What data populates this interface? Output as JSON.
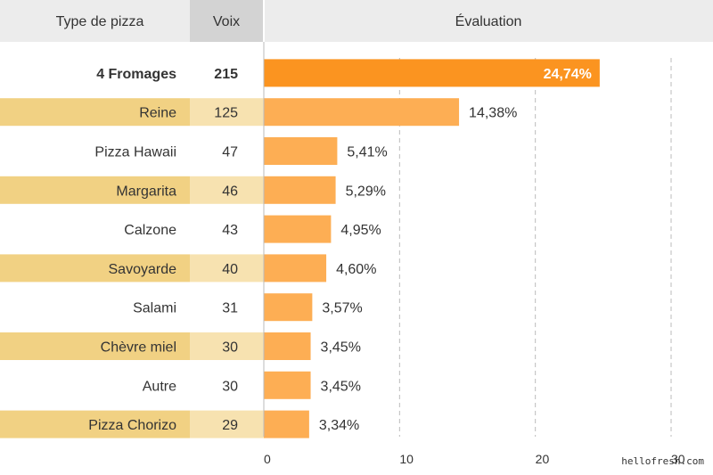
{
  "header": {
    "col_type": "Type de pizza",
    "col_votes": "Voix",
    "col_eval": "Évaluation"
  },
  "watermark": "hellofresh.com",
  "colors": {
    "header_bg": "#ececec",
    "votes_header_bg": "#d3d3d3",
    "stripe_label": "#f1d183",
    "stripe_votes": "#f7e2b0",
    "bar_top": "#fb9420",
    "bar": "#fdae54",
    "grid": "#bbbbbb"
  },
  "chart_data": {
    "type": "bar",
    "orientation": "horizontal",
    "categories": [
      "4 Fromages",
      "Reine",
      "Pizza Hawaii",
      "Margarita",
      "Calzone",
      "Savoyarde",
      "Salami",
      "Chèvre miel",
      "Autre",
      "Pizza Chorizo"
    ],
    "votes": [
      215,
      125,
      47,
      46,
      43,
      40,
      31,
      30,
      30,
      29
    ],
    "values": [
      24.74,
      14.38,
      5.41,
      5.29,
      4.95,
      4.6,
      3.57,
      3.45,
      3.45,
      3.34
    ],
    "value_labels": [
      "24,74%",
      "14,38%",
      "5,41%",
      "5,29%",
      "4,95%",
      "4,60%",
      "3,57%",
      "3,45%",
      "3,45%",
      "3,34%"
    ],
    "x_ticks": [
      0,
      10,
      20,
      30
    ],
    "x_tick_labels": [
      "0",
      "10",
      "20",
      "30"
    ],
    "xlim": [
      0,
      30
    ],
    "grid": true,
    "highlight_index": 0
  }
}
